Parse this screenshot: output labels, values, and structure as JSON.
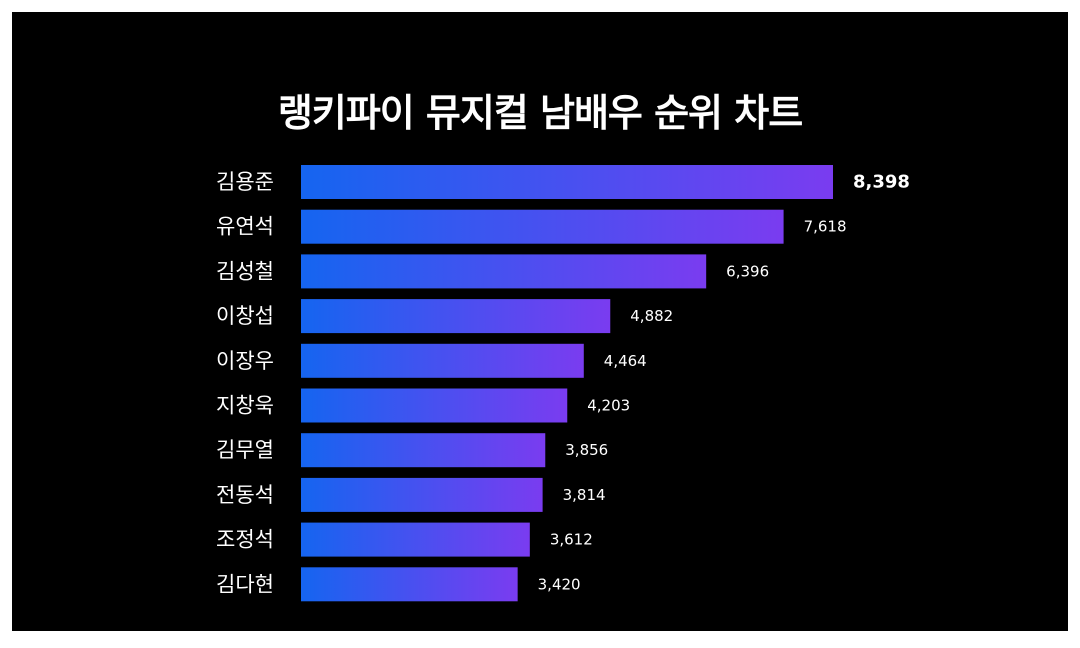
{
  "chart_data": {
    "type": "bar",
    "orientation": "horizontal",
    "title": "랭키파이 뮤지컬 남배우 순위 차트",
    "categories": [
      "김용준",
      "유연석",
      "김성철",
      "이창섭",
      "이장우",
      "지창욱",
      "김무열",
      "전동석",
      "조정석",
      "김다현"
    ],
    "values": [
      8398,
      7618,
      6396,
      4882,
      4464,
      4203,
      3856,
      3814,
      3612,
      3420
    ],
    "value_labels": [
      "8,398",
      "7,618",
      "6,396",
      "4,882",
      "4,464",
      "4,203",
      "3,856",
      "3,814",
      "3,612",
      "3,420"
    ],
    "xlim": [
      0,
      8398
    ],
    "grid": false,
    "legend": "none",
    "colors": {
      "background": "#000000",
      "bar_start": "#1565f0",
      "bar_end": "#7a3cf0",
      "text": "#ffffff"
    }
  }
}
